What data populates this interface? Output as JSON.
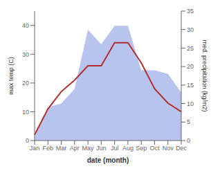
{
  "chart_data": {
    "type": "line",
    "categories": [
      "Jan",
      "Feb",
      "Mar",
      "Apr",
      "May",
      "Jun",
      "Jul",
      "Aug",
      "Sep",
      "Oct",
      "Nov",
      "Dec"
    ],
    "series": [
      {
        "type": "area",
        "color": "#b8c4ee",
        "axis": "y2",
        "values": [
          1,
          9,
          10,
          14,
          30,
          26,
          31,
          31,
          19,
          19,
          18,
          13
        ]
      },
      {
        "type": "line",
        "color": "#b03030",
        "values": [
          2,
          11,
          17,
          21,
          26,
          26,
          34,
          34,
          27,
          18,
          13,
          10
        ]
      }
    ],
    "xlabel": "date (month)",
    "ylabel": "max temp (C)",
    "y2label": "med. precipitation (kg/m2)",
    "ylim": [
      0,
      45
    ],
    "yticks": [
      0,
      10,
      20,
      30,
      40
    ],
    "y2lim": [
      0,
      35
    ],
    "y2ticks": [
      0,
      5,
      10,
      15,
      20,
      25,
      30,
      35
    ],
    "grid": false
  }
}
